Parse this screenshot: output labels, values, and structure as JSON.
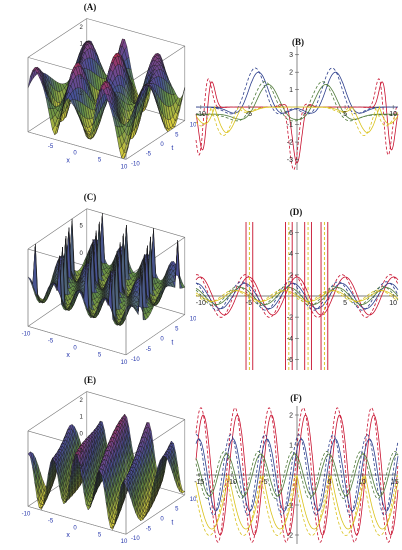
{
  "figure": {
    "panels": [
      {
        "id": "A",
        "label": "(A)",
        "kind": "surface3d"
      },
      {
        "id": "B",
        "label": "(B)",
        "kind": "line"
      },
      {
        "id": "C",
        "label": "(C)",
        "kind": "surface3d"
      },
      {
        "id": "D",
        "label": "(D)",
        "kind": "line"
      },
      {
        "id": "E",
        "label": "(E)",
        "kind": "surface3d"
      },
      {
        "id": "F",
        "label": "(F)",
        "kind": "line"
      }
    ]
  },
  "colors": {
    "series": [
      "#c8102e",
      "#2c3e8c",
      "#4f7a3a",
      "#d9c21c"
    ],
    "axis": "#555555",
    "tick": "#2233aa"
  },
  "chart_data": [
    {
      "panel": "A",
      "type": "surface3d",
      "xlabel": "x",
      "ylabel": "t",
      "x_ticks": [
        "-5",
        "0",
        "5",
        "10"
      ],
      "y_ticks": [
        "-10",
        "-5",
        "0",
        "5",
        "10"
      ],
      "z_ticks": [
        "-2",
        "-1",
        "0",
        "1",
        "2"
      ],
      "xlim": [
        -10,
        10
      ],
      "ylim": [
        -10,
        10
      ],
      "zlim": [
        -2,
        2.5
      ]
    },
    {
      "panel": "B",
      "type": "line",
      "x_ticks": [
        "-10",
        "-5",
        "5",
        "10"
      ],
      "y_ticks": [
        "-3",
        "-2",
        "-1",
        "1",
        "2",
        "3"
      ],
      "xlim": [
        -10.5,
        10.5
      ],
      "ylim": [
        -3.6,
        3.5
      ],
      "grid": false
    },
    {
      "panel": "C",
      "type": "surface3d",
      "xlabel": "x",
      "ylabel": "t",
      "x_ticks": [
        "-10",
        "-5",
        "0",
        "5",
        "10"
      ],
      "y_ticks": [
        "-10",
        "-5",
        "0",
        "5",
        "10"
      ],
      "z_ticks": [
        "-5",
        "0",
        "5"
      ],
      "xlim": [
        -10,
        10
      ],
      "ylim": [
        -10,
        10
      ],
      "zlim": [
        -6,
        8
      ]
    },
    {
      "panel": "D",
      "type": "line",
      "x_ticks": [
        "-10",
        "-5",
        "5",
        "10"
      ],
      "y_ticks": [
        "-6",
        "-4",
        "-2",
        "2",
        "4",
        "6"
      ],
      "xlim": [
        -10.5,
        10.5
      ],
      "ylim": [
        -7,
        7
      ],
      "grid": false
    },
    {
      "panel": "E",
      "type": "surface3d",
      "xlabel": "x",
      "ylabel": "t",
      "x_ticks": [
        "-10",
        "-5",
        "0",
        "5",
        "10"
      ],
      "y_ticks": [
        "-10",
        "-5",
        "0",
        "5",
        "10"
      ],
      "z_ticks": [
        "-2",
        "-1",
        "0",
        "1",
        "2"
      ],
      "xlim": [
        -10,
        10
      ],
      "ylim": [
        -10,
        10
      ],
      "zlim": [
        -2,
        2.5
      ]
    },
    {
      "panel": "F",
      "type": "line",
      "x_ticks": [
        "-15",
        "-10",
        "-5",
        "5",
        "10",
        "15"
      ],
      "y_ticks": [
        "-2",
        "-1",
        "1",
        "2"
      ],
      "xlim": [
        -15.5,
        15.5
      ],
      "ylim": [
        -2.3,
        2.3
      ],
      "grid": false
    }
  ]
}
